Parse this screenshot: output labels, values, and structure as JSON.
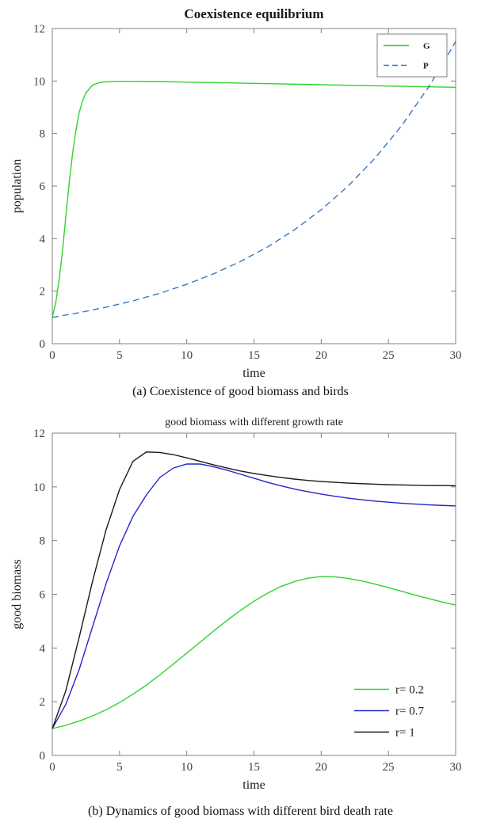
{
  "captions": {
    "a": "(a) Coexistence of good biomass and birds",
    "b": "(b) Dynamics of good biomass with different bird death rate"
  },
  "colors": {
    "axis": "#808080",
    "tick_label": "#404040",
    "text": "#1a1a1a",
    "green": "#2ed32e",
    "dashed_blue": "#3778bf",
    "blue": "#2525cc",
    "black": "#1a1a1a"
  },
  "chart_data": [
    {
      "type": "line",
      "title": "Coexistence equilibrium",
      "xlabel": "time",
      "ylabel": "population",
      "xlim": [
        0,
        30
      ],
      "ylim": [
        0,
        12
      ],
      "xticks": [
        0,
        5,
        10,
        15,
        20,
        25,
        30
      ],
      "yticks": [
        0,
        2,
        4,
        6,
        8,
        10,
        12
      ],
      "grid": false,
      "legend": {
        "position": "top-right",
        "box": true,
        "sample_len": 32,
        "font_size": 11
      },
      "series": [
        {
          "name": "G",
          "color": "#2ed32e",
          "dash": false,
          "x": [
            0,
            0.25,
            0.5,
            0.75,
            1,
            1.25,
            1.5,
            1.75,
            2,
            2.25,
            2.5,
            3,
            3.5,
            4,
            5,
            6,
            8,
            10,
            12,
            15,
            18,
            21,
            24,
            27,
            30
          ],
          "y": [
            1,
            1.55,
            2.4,
            3.5,
            4.8,
            6.1,
            7.2,
            8.1,
            8.8,
            9.25,
            9.55,
            9.85,
            9.94,
            9.97,
            9.99,
            9.99,
            9.98,
            9.96,
            9.94,
            9.91,
            9.88,
            9.85,
            9.82,
            9.79,
            9.76
          ]
        },
        {
          "name": "P",
          "color": "#3778bf",
          "dash": true,
          "x": [
            0,
            2,
            4,
            6,
            8,
            10,
            12,
            14,
            16,
            18,
            20,
            22,
            24,
            26,
            28,
            30
          ],
          "y": [
            1,
            1.18,
            1.39,
            1.63,
            1.92,
            2.26,
            2.66,
            3.13,
            3.68,
            4.33,
            5.1,
            6.0,
            7.06,
            8.31,
            9.78,
            11.5
          ]
        }
      ]
    },
    {
      "type": "line",
      "title": "good biomass with different growth rate",
      "xlabel": "time",
      "ylabel": "good biomass",
      "xlim": [
        0,
        30
      ],
      "ylim": [
        0,
        12
      ],
      "xticks": [
        0,
        5,
        10,
        15,
        20,
        25,
        30
      ],
      "yticks": [
        0,
        2,
        4,
        6,
        8,
        10,
        12
      ],
      "grid": false,
      "legend": {
        "position": "bottom-right",
        "box": false,
        "sample_len": 44,
        "font_size": 15
      },
      "series": [
        {
          "name": "r= 0.2",
          "color": "#2ed32e",
          "dash": false,
          "x": [
            0,
            1,
            2,
            3,
            4,
            5,
            6,
            7,
            8,
            9,
            10,
            11,
            12,
            13,
            14,
            15,
            16,
            17,
            18,
            19,
            20,
            21,
            22,
            23,
            24,
            25,
            26,
            27,
            28,
            29,
            30
          ],
          "y": [
            1,
            1.12,
            1.28,
            1.47,
            1.7,
            1.97,
            2.28,
            2.62,
            3,
            3.4,
            3.81,
            4.22,
            4.63,
            5.03,
            5.4,
            5.74,
            6.04,
            6.29,
            6.47,
            6.6,
            6.66,
            6.65,
            6.59,
            6.5,
            6.38,
            6.25,
            6.11,
            5.97,
            5.84,
            5.71,
            5.6
          ]
        },
        {
          "name": "r= 0.7",
          "color": "#2525cc",
          "dash": false,
          "x": [
            0,
            1,
            2,
            3,
            4,
            5,
            6,
            7,
            8,
            9,
            10,
            11,
            12,
            13,
            14,
            15,
            16,
            17,
            18,
            19,
            20,
            21,
            22,
            23,
            24,
            25,
            26,
            27,
            28,
            29,
            30
          ],
          "y": [
            1,
            1.9,
            3.2,
            4.8,
            6.4,
            7.8,
            8.9,
            9.7,
            10.35,
            10.7,
            10.85,
            10.85,
            10.75,
            10.62,
            10.47,
            10.32,
            10.17,
            10.04,
            9.92,
            9.82,
            9.73,
            9.65,
            9.58,
            9.52,
            9.47,
            9.43,
            9.39,
            9.36,
            9.33,
            9.31,
            9.29
          ]
        },
        {
          "name": "r= 1",
          "color": "#1a1a1a",
          "dash": false,
          "x": [
            0,
            1,
            2,
            3,
            4,
            5,
            6,
            7,
            8,
            9,
            10,
            11,
            12,
            13,
            14,
            15,
            16,
            17,
            18,
            19,
            20,
            21,
            22,
            23,
            24,
            25,
            26,
            27,
            28,
            29,
            30
          ],
          "y": [
            1,
            2.4,
            4.4,
            6.5,
            8.4,
            9.9,
            10.95,
            11.3,
            11.28,
            11.2,
            11.08,
            10.95,
            10.82,
            10.7,
            10.59,
            10.5,
            10.42,
            10.35,
            10.29,
            10.24,
            10.2,
            10.17,
            10.14,
            10.12,
            10.1,
            10.08,
            10.07,
            10.06,
            10.05,
            10.05,
            10.04
          ]
        }
      ]
    }
  ]
}
